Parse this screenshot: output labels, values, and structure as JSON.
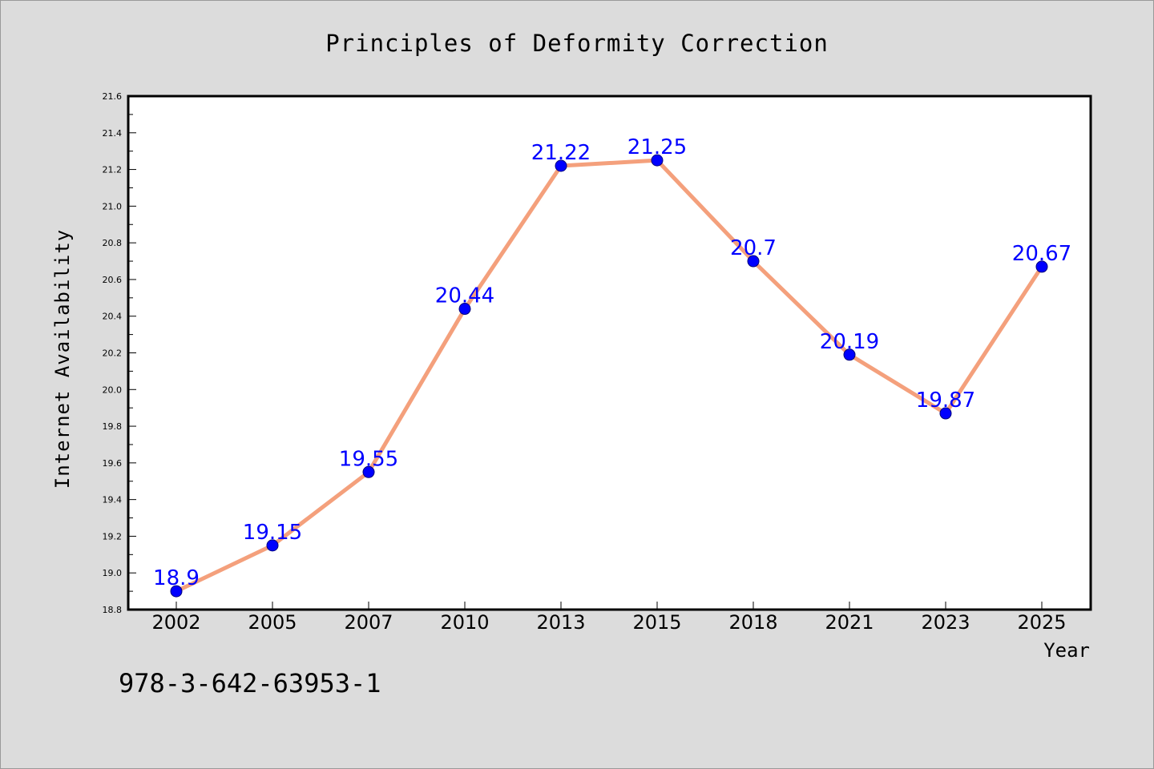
{
  "chart_data": {
    "type": "line",
    "title": "Principles of Deformity Correction",
    "xlabel": "Year",
    "ylabel": "Internet Availability",
    "categories": [
      "2002",
      "2005",
      "2007",
      "2010",
      "2013",
      "2015",
      "2018",
      "2021",
      "2023",
      "2025"
    ],
    "series": [
      {
        "values": [
          18.9,
          19.15,
          19.55,
          20.44,
          21.22,
          21.25,
          20.7,
          20.19,
          19.87,
          20.67
        ]
      }
    ],
    "data_labels": [
      "18.9",
      "19.15",
      "19.55",
      "20.44",
      "21.22",
      "21.25",
      "20.7",
      "20.19",
      "19.87",
      "20.67"
    ],
    "ylim": [
      18.8,
      21.6
    ],
    "yticks": [
      "18.8",
      "19.0",
      "19.2",
      "19.4",
      "19.6",
      "19.8",
      "20.0",
      "20.2",
      "20.4",
      "20.6",
      "20.8",
      "21.0",
      "21.2",
      "21.4",
      "21.6"
    ],
    "grid": false,
    "line_color": "#f4a07c",
    "marker_color": "#0000ff",
    "label_color": "#0000ff"
  },
  "footer": {
    "isbn": "978-3-642-63953-1"
  }
}
